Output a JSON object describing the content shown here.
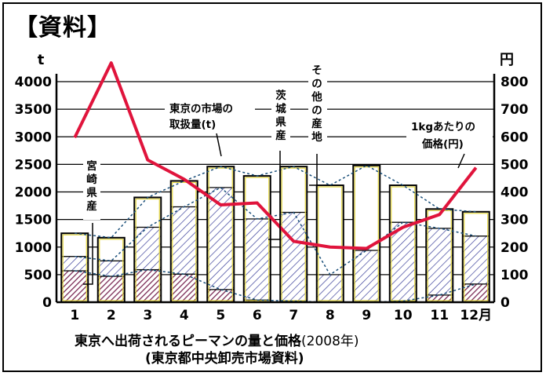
{
  "header": {
    "title": "【資料】"
  },
  "chart_data": {
    "type": "bar",
    "title": "東京へ出荷されるピーマンの量と価格",
    "title_year": "(2008年)",
    "source": "(東京都中央卸売市場資料)",
    "categories": [
      "1",
      "2",
      "3",
      "4",
      "5",
      "6",
      "7",
      "8",
      "9",
      "10",
      "11",
      "12月"
    ],
    "y_left": {
      "unit": "t",
      "ylim": [
        0,
        4000
      ],
      "ticks": [
        0,
        500,
        1000,
        1500,
        2000,
        2500,
        3000,
        3500,
        4000
      ]
    },
    "y_right": {
      "unit": "円",
      "ylim": [
        0,
        800
      ],
      "ticks": [
        0,
        100,
        200,
        300,
        400,
        500,
        600,
        700,
        800
      ]
    },
    "grid": "horizontal",
    "series": [
      {
        "name": "宮崎県産",
        "type": "stacked-bar",
        "axis": "left",
        "pattern": "diagonal-dense",
        "values": [
          570,
          470,
          590,
          510,
          230,
          40,
          20,
          0,
          0,
          20,
          130,
          330
        ]
      },
      {
        "name": "茨城県産",
        "type": "stacked-bar",
        "axis": "left",
        "pattern": "diagonal-hatch",
        "values": [
          260,
          280,
          770,
          1220,
          1850,
          1470,
          1610,
          500,
          940,
          1430,
          1210,
          870
        ]
      },
      {
        "name": "その他の産地",
        "type": "stacked-bar",
        "axis": "left",
        "pattern": "none",
        "values": [
          420,
          420,
          540,
          470,
          380,
          780,
          830,
          1620,
          1540,
          670,
          350,
          440
        ]
      },
      {
        "name": "1kgあたりの価格(円)",
        "type": "line",
        "axis": "right",
        "color": "#e0143c",
        "values": [
          597,
          868,
          516,
          446,
          353,
          360,
          221,
          200,
          195,
          272,
          318,
          488
        ]
      }
    ],
    "annotations": [
      {
        "label": "宮崎県産",
        "lines": [
          "宮",
          "崎",
          "県",
          "産"
        ]
      },
      {
        "label": "茨城県産",
        "lines": [
          "茨",
          "城",
          "県",
          "産"
        ]
      },
      {
        "label": "その他の産地",
        "lines": [
          "そ",
          "の",
          "他",
          "の",
          "産",
          "地"
        ]
      },
      {
        "label": "東京の市場の取扱量(t)",
        "lines": [
          "東京の市場の",
          "取扱量(t)"
        ]
      },
      {
        "label": "1kgあたりの価格(円)",
        "lines": [
          "1kgあたりの",
          "価格(円)"
        ]
      }
    ]
  }
}
